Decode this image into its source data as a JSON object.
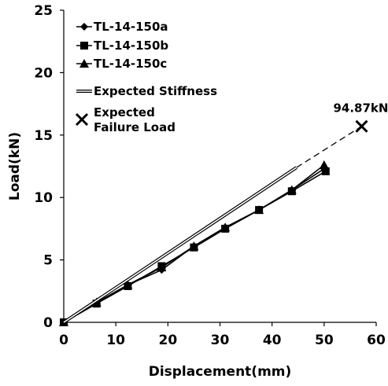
{
  "chart_data": {
    "type": "line",
    "xlabel": "Displacement(mm)",
    "ylabel": "Load(kN)",
    "xlim": [
      0,
      60
    ],
    "ylim": [
      0,
      25
    ],
    "xticks": [
      "0",
      "10",
      "20",
      "30",
      "40",
      "50",
      "60"
    ],
    "yticks": [
      "0",
      "5",
      "10",
      "15",
      "20",
      "25"
    ],
    "grid": false,
    "legend_position": "top-left",
    "series": [
      {
        "name": "TL-14-150a",
        "marker": "diamond",
        "x": [
          0,
          6.3,
          12.3,
          18.8,
          25.0,
          31.0,
          37.5,
          43.8,
          50.0
        ],
        "y": [
          0,
          1.5,
          3.0,
          4.2,
          6.1,
          7.6,
          9.0,
          10.6,
          12.3
        ]
      },
      {
        "name": "TL-14-150b",
        "marker": "square",
        "x": [
          0,
          6.3,
          12.3,
          18.8,
          25.0,
          31.0,
          37.5,
          43.8,
          50.3
        ],
        "y": [
          0,
          1.5,
          2.9,
          4.5,
          6.0,
          7.5,
          9.0,
          10.5,
          12.1
        ]
      },
      {
        "name": "TL-14-150c",
        "marker": "triangle",
        "x": [
          0,
          6.3,
          12.3,
          18.8,
          25.0,
          31.0,
          37.5,
          43.8,
          50.0
        ],
        "y": [
          0,
          1.6,
          3.0,
          4.4,
          6.1,
          7.6,
          9.0,
          10.6,
          12.6
        ]
      },
      {
        "name": "Expected Stiffness",
        "marker": "none",
        "style": "double-line",
        "x": [
          0,
          44.7
        ],
        "y": [
          0,
          12.4
        ],
        "extension": {
          "x": [
            44.7,
            57.2
          ],
          "y": [
            12.4,
            15.7
          ],
          "style": "dashed"
        }
      },
      {
        "name": "Expected Failure Load",
        "marker": "x",
        "x": [
          57.2
        ],
        "y": [
          15.7
        ],
        "label": "94.87kN"
      }
    ]
  }
}
